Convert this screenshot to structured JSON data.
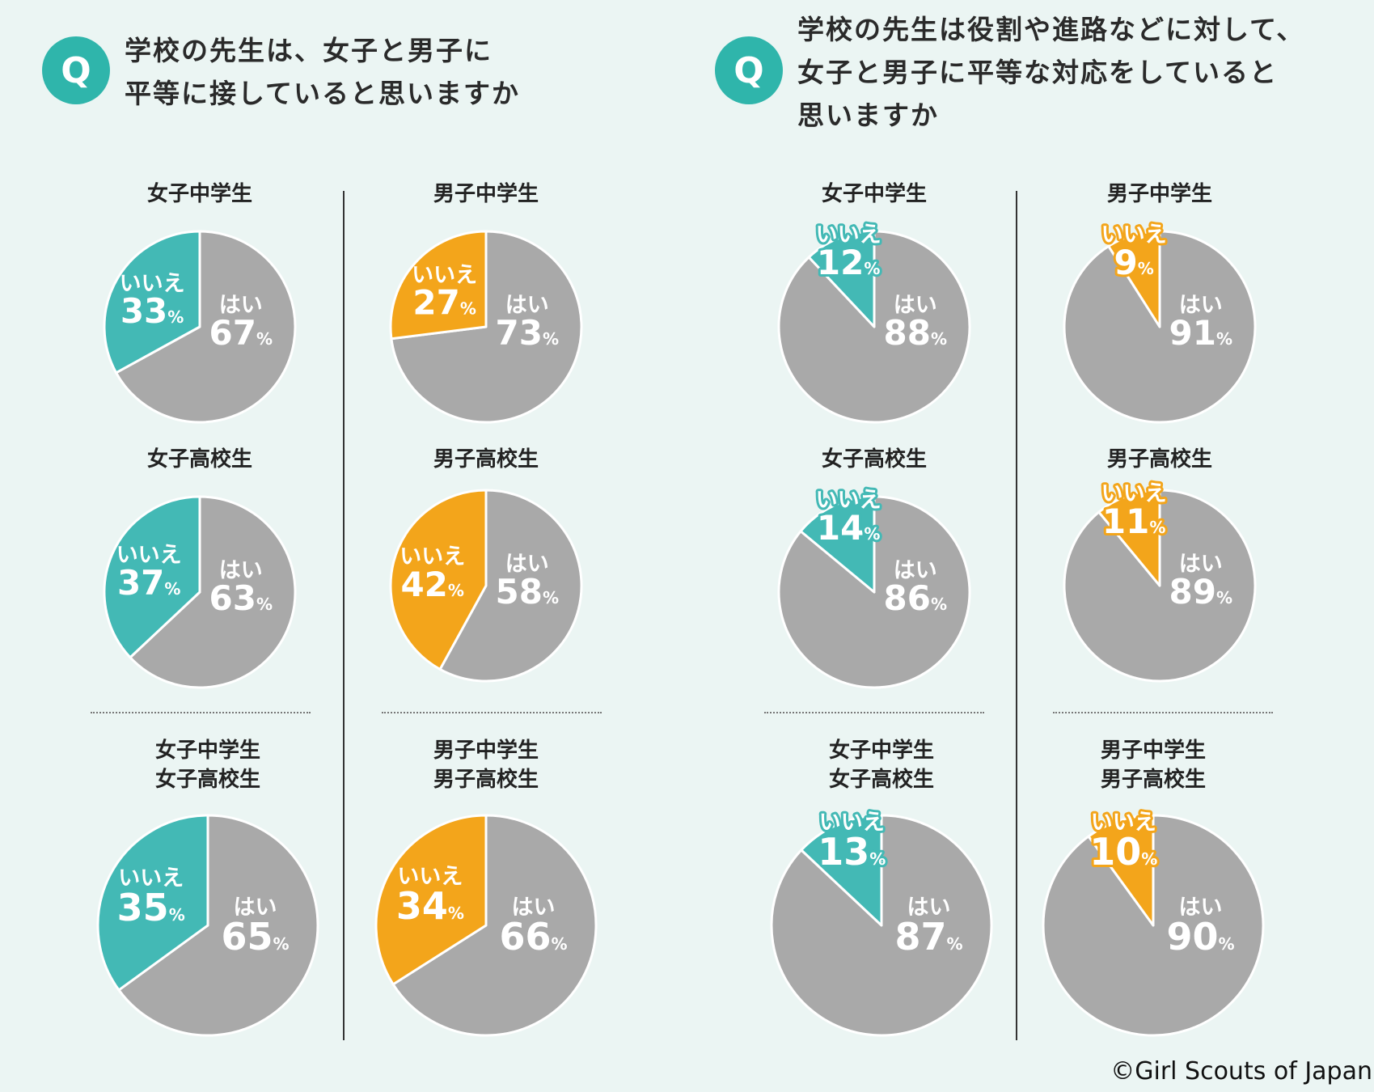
{
  "questions": [
    {
      "icon": "Q",
      "lines": [
        "学校の先生は、女子と男子に",
        "平等に接していると思いますか"
      ]
    },
    {
      "icon": "Q",
      "lines": [
        "学校の先生は役割や進路などに対して、",
        "女子と男子に平等な対応をしていると",
        "思いますか"
      ]
    }
  ],
  "labels": {
    "yes": "はい",
    "no": "いいえ",
    "pct": "%"
  },
  "colors": {
    "teal": "#43b9b5",
    "orange": "#f3a51b",
    "gray": "#a9a9a9",
    "white": "#ffffff"
  },
  "chart_data": [
    {
      "type": "pie",
      "question": 1,
      "title": [
        "女子中学生"
      ],
      "no_color": "teal",
      "slices": [
        {
          "label": "いいえ",
          "value": 33
        },
        {
          "label": "はい",
          "value": 67
        }
      ]
    },
    {
      "type": "pie",
      "question": 1,
      "title": [
        "男子中学生"
      ],
      "no_color": "orange",
      "slices": [
        {
          "label": "いいえ",
          "value": 27
        },
        {
          "label": "はい",
          "value": 73
        }
      ]
    },
    {
      "type": "pie",
      "question": 1,
      "title": [
        "女子高校生"
      ],
      "no_color": "teal",
      "slices": [
        {
          "label": "いいえ",
          "value": 37
        },
        {
          "label": "はい",
          "value": 63
        }
      ]
    },
    {
      "type": "pie",
      "question": 1,
      "title": [
        "男子高校生"
      ],
      "no_color": "orange",
      "slices": [
        {
          "label": "いいえ",
          "value": 42
        },
        {
          "label": "はい",
          "value": 58
        }
      ]
    },
    {
      "type": "pie",
      "question": 1,
      "title": [
        "女子中学生",
        "女子高校生"
      ],
      "no_color": "teal",
      "slices": [
        {
          "label": "いいえ",
          "value": 35
        },
        {
          "label": "はい",
          "value": 65
        }
      ]
    },
    {
      "type": "pie",
      "question": 1,
      "title": [
        "男子中学生",
        "男子高校生"
      ],
      "no_color": "orange",
      "slices": [
        {
          "label": "いいえ",
          "value": 34
        },
        {
          "label": "はい",
          "value": 66
        }
      ]
    },
    {
      "type": "pie",
      "question": 2,
      "title": [
        "女子中学生"
      ],
      "no_color": "teal",
      "slices": [
        {
          "label": "いいえ",
          "value": 12
        },
        {
          "label": "はい",
          "value": 88
        }
      ]
    },
    {
      "type": "pie",
      "question": 2,
      "title": [
        "男子中学生"
      ],
      "no_color": "orange",
      "slices": [
        {
          "label": "いいえ",
          "value": 9
        },
        {
          "label": "はい",
          "value": 91
        }
      ]
    },
    {
      "type": "pie",
      "question": 2,
      "title": [
        "女子高校生"
      ],
      "no_color": "teal",
      "slices": [
        {
          "label": "いいえ",
          "value": 14
        },
        {
          "label": "はい",
          "value": 86
        }
      ]
    },
    {
      "type": "pie",
      "question": 2,
      "title": [
        "男子高校生"
      ],
      "no_color": "orange",
      "slices": [
        {
          "label": "いいえ",
          "value": 11
        },
        {
          "label": "はい",
          "value": 89
        }
      ]
    },
    {
      "type": "pie",
      "question": 2,
      "title": [
        "女子中学生",
        "女子高校生"
      ],
      "no_color": "teal",
      "slices": [
        {
          "label": "いいえ",
          "value": 13
        },
        {
          "label": "はい",
          "value": 87
        }
      ]
    },
    {
      "type": "pie",
      "question": 2,
      "title": [
        "男子中学生",
        "男子高校生"
      ],
      "no_color": "orange",
      "slices": [
        {
          "label": "いいえ",
          "value": 10
        },
        {
          "label": "はい",
          "value": 90
        }
      ]
    }
  ],
  "copyright": "©Girl Scouts of Japan"
}
